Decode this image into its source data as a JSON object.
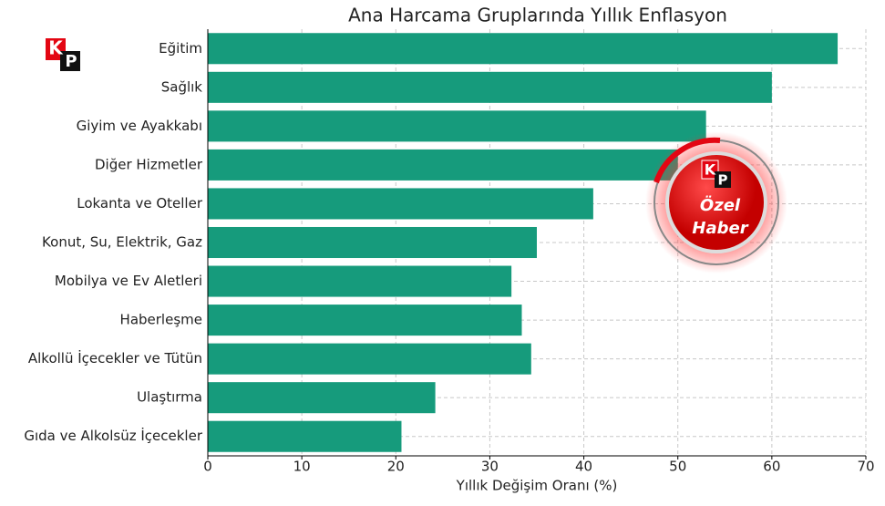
{
  "chart_data": {
    "type": "barh",
    "title": "Ana Harcama Gruplarında Yıllık Enflasyon",
    "xlabel": "Yıllık Değişim Oranı (%)",
    "categories": [
      "Eğitim",
      "Sağlık",
      "Giyim ve Ayakkabı",
      "Diğer Hizmetler",
      "Lokanta ve Oteller",
      "Konut, Su, Elektrik, Gaz",
      "Mobilya ve Ev Aletleri",
      "Haberleşme",
      "Alkollü İçecekler ve Tütün",
      "Ulaştırma",
      "Gıda ve Alkolsüz İçecekler"
    ],
    "values": [
      67,
      60,
      53,
      50,
      41,
      35,
      32.3,
      33.4,
      34.4,
      24.2,
      20.6
    ],
    "color": "#169b7c",
    "xlim": [
      0,
      70
    ],
    "xticks": [
      0,
      10,
      20,
      30,
      40,
      50,
      60,
      70
    ],
    "grid": true
  },
  "logo": [
    "K",
    "P"
  ],
  "badge": [
    "Özel",
    "Haber"
  ]
}
